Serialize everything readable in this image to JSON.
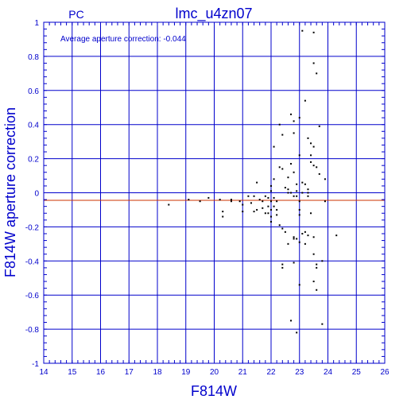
{
  "chart_data": {
    "type": "scatter",
    "label_left": "PC",
    "title": "lmc_u4zn07",
    "annotation": "Average aperture correction: -0.044",
    "xlabel": "F814W",
    "ylabel": "F814W aperture correction",
    "xlim": [
      14,
      26
    ],
    "ylim": [
      -1,
      1
    ],
    "xticks": [
      14,
      15,
      16,
      17,
      18,
      19,
      20,
      21,
      22,
      23,
      24,
      25,
      26
    ],
    "yticks": [
      -1,
      -0.8,
      -0.6,
      -0.4,
      -0.2,
      0,
      0.2,
      0.4,
      0.6,
      0.8,
      1
    ],
    "grid": true,
    "reference_lines": [
      {
        "y": 0,
        "color": "#0000cc"
      },
      {
        "y": -0.044,
        "color": "#cc3300"
      }
    ],
    "colors": {
      "axis": "#0000cc",
      "title": "#0000cc",
      "points": "#000000",
      "mean_line": "#cc3300"
    },
    "points": [
      [
        18.4,
        -0.07
      ],
      [
        19.1,
        -0.04
      ],
      [
        19.5,
        -0.05
      ],
      [
        19.8,
        -0.03
      ],
      [
        20.2,
        -0.04
      ],
      [
        20.3,
        -0.11
      ],
      [
        20.3,
        -0.14
      ],
      [
        20.6,
        -0.05
      ],
      [
        20.6,
        -0.04
      ],
      [
        20.9,
        -0.05
      ],
      [
        21.0,
        -0.07
      ],
      [
        21.0,
        -0.11
      ],
      [
        21.2,
        -0.02
      ],
      [
        21.3,
        -0.06
      ],
      [
        21.4,
        -0.02
      ],
      [
        21.4,
        -0.11
      ],
      [
        21.5,
        0.06
      ],
      [
        21.5,
        -0.1
      ],
      [
        21.6,
        -0.04
      ],
      [
        21.7,
        -0.05
      ],
      [
        21.7,
        -0.09
      ],
      [
        21.8,
        -0.02
      ],
      [
        21.8,
        -0.12
      ],
      [
        21.9,
        -0.08
      ],
      [
        21.9,
        -0.03
      ],
      [
        21.9,
        -0.12
      ],
      [
        22.0,
        -0.1
      ],
      [
        22.0,
        0.04
      ],
      [
        22.0,
        -0.05
      ],
      [
        22.0,
        0.01
      ],
      [
        22.0,
        -0.14
      ],
      [
        22.0,
        -0.17
      ],
      [
        22.1,
        0.08
      ],
      [
        22.1,
        0.27
      ],
      [
        22.1,
        -0.03
      ],
      [
        22.1,
        -0.08
      ],
      [
        22.2,
        -0.13
      ],
      [
        22.2,
        -0.1
      ],
      [
        22.2,
        -0.05
      ],
      [
        22.3,
        -0.19
      ],
      [
        22.3,
        0.15
      ],
      [
        22.3,
        0.4
      ],
      [
        22.4,
        0.34
      ],
      [
        22.4,
        0.14
      ],
      [
        22.4,
        -0.21
      ],
      [
        22.4,
        -0.42
      ],
      [
        22.4,
        -0.44
      ],
      [
        22.5,
        -0.23
      ],
      [
        22.5,
        0.03
      ],
      [
        22.6,
        0.02
      ],
      [
        22.6,
        0.09
      ],
      [
        22.6,
        0.0
      ],
      [
        22.6,
        -0.3
      ],
      [
        22.7,
        0.17
      ],
      [
        22.7,
        0.46
      ],
      [
        22.7,
        -0.75
      ],
      [
        22.7,
        0.0
      ],
      [
        22.8,
        0.42
      ],
      [
        22.8,
        0.35
      ],
      [
        22.8,
        -0.26
      ],
      [
        22.8,
        -0.27
      ],
      [
        22.8,
        -0.41
      ],
      [
        22.8,
        0.12
      ],
      [
        22.8,
        -0.02
      ],
      [
        22.9,
        0.05
      ],
      [
        22.9,
        -0.27
      ],
      [
        22.9,
        -0.82
      ],
      [
        22.9,
        0.01
      ],
      [
        22.9,
        -0.02
      ],
      [
        23.0,
        0.44
      ],
      [
        23.0,
        0.22
      ],
      [
        23.0,
        -0.05
      ],
      [
        23.0,
        -0.1
      ],
      [
        23.0,
        -0.13
      ],
      [
        23.0,
        -0.29
      ],
      [
        23.0,
        -0.54
      ],
      [
        23.1,
        0.95
      ],
      [
        23.1,
        -0.24
      ],
      [
        23.1,
        0.06
      ],
      [
        23.1,
        0.0
      ],
      [
        23.2,
        0.54
      ],
      [
        23.2,
        0.05
      ],
      [
        23.2,
        -0.3
      ],
      [
        23.2,
        -0.23
      ],
      [
        23.3,
        0.02
      ],
      [
        23.3,
        -0.02
      ],
      [
        23.3,
        -0.25
      ],
      [
        23.3,
        0.0
      ],
      [
        23.3,
        0.32
      ],
      [
        23.4,
        -0.12
      ],
      [
        23.4,
        0.18
      ],
      [
        23.4,
        0.29
      ],
      [
        23.4,
        0.22
      ],
      [
        23.5,
        0.94
      ],
      [
        23.5,
        0.76
      ],
      [
        23.5,
        0.16
      ],
      [
        23.5,
        0.27
      ],
      [
        23.5,
        -0.26
      ],
      [
        23.5,
        -0.36
      ],
      [
        23.5,
        -0.52
      ],
      [
        23.6,
        0.7
      ],
      [
        23.6,
        0.15
      ],
      [
        23.6,
        -0.44
      ],
      [
        23.6,
        -0.42
      ],
      [
        23.6,
        -0.57
      ],
      [
        23.7,
        0.39
      ],
      [
        23.7,
        0.11
      ],
      [
        23.8,
        -0.4
      ],
      [
        23.8,
        -0.77
      ],
      [
        23.9,
        0.08
      ],
      [
        23.9,
        -0.05
      ],
      [
        24.3,
        -0.25
      ]
    ]
  }
}
